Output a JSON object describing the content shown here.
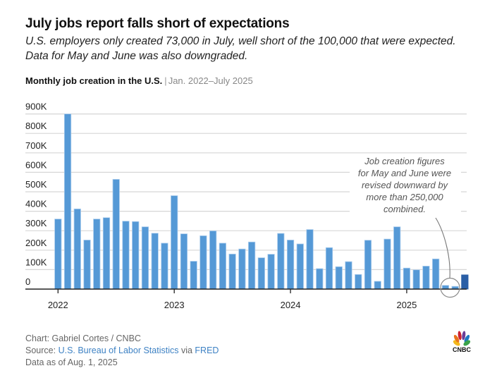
{
  "header": {
    "title": "July jobs report falls short of expectations",
    "subtitle": "U.S. employers only created 73,000 in July, well short of the 100,000 that were expected. Data for May and June was also downgraded.",
    "chart_label_bold": "Monthly job creation in the U.S.",
    "chart_label_separator": "|",
    "chart_label_range": "Jan. 2022–July 2025"
  },
  "colors": {
    "bar": "#5599d6",
    "bar_highlight": "#2a5fa6",
    "link": "#3e82c4"
  },
  "chart_data": {
    "type": "bar",
    "title": "Monthly job creation in the U.S.",
    "subtitle": "Jan. 2022–July 2025",
    "xlabel": "",
    "ylabel": "",
    "ylim": [
      0,
      900000
    ],
    "yticks": [
      0,
      100000,
      200000,
      300000,
      400000,
      500000,
      600000,
      700000,
      800000,
      900000
    ],
    "ytick_labels": [
      "0",
      "100K",
      "200K",
      "300K",
      "400K",
      "500K",
      "600K",
      "700K",
      "800K",
      "900K"
    ],
    "xtick_labels": [
      {
        "label": "2022",
        "index": 0
      },
      {
        "label": "2023",
        "index": 12
      },
      {
        "label": "2024",
        "index": 24
      },
      {
        "label": "2025",
        "index": 36
      }
    ],
    "grid": true,
    "categories": [
      "Jan 2022",
      "Feb 2022",
      "Mar 2022",
      "Apr 2022",
      "May 2022",
      "Jun 2022",
      "Jul 2022",
      "Aug 2022",
      "Sep 2022",
      "Oct 2022",
      "Nov 2022",
      "Dec 2022",
      "Jan 2023",
      "Feb 2023",
      "Mar 2023",
      "Apr 2023",
      "May 2023",
      "Jun 2023",
      "Jul 2023",
      "Aug 2023",
      "Sep 2023",
      "Oct 2023",
      "Nov 2023",
      "Dec 2023",
      "Jan 2024",
      "Feb 2024",
      "Mar 2024",
      "Apr 2024",
      "May 2024",
      "Jun 2024",
      "Jul 2024",
      "Aug 2024",
      "Sep 2024",
      "Oct 2024",
      "Nov 2024",
      "Dec 2024",
      "Jan 2025",
      "Feb 2025",
      "Mar 2025",
      "Apr 2025",
      "May 2025",
      "Jun 2025",
      "Jul 2025"
    ],
    "values": [
      360000,
      900000,
      412000,
      252000,
      360000,
      367000,
      564000,
      349000,
      347000,
      320000,
      287000,
      236000,
      480000,
      284000,
      143000,
      274000,
      299000,
      236000,
      180000,
      206000,
      242000,
      161000,
      179000,
      286000,
      252000,
      232000,
      306000,
      105000,
      213000,
      115000,
      141000,
      75000,
      251000,
      40000,
      257000,
      320000,
      108000,
      99000,
      118000,
      155000,
      19000,
      14000,
      73000
    ],
    "highlight_index": 42,
    "circled_indices": [
      40,
      41
    ],
    "annotation": {
      "lines": [
        "Job creation figures",
        "for May and June were",
        "revised downward by",
        "more than 250,000",
        "combined."
      ]
    }
  },
  "footer": {
    "chart_credit": "Chart: Gabriel Cortes / CNBC",
    "source_prefix": "Source: ",
    "source_link": "U.S. Bureau of Labor Statistics",
    "source_via": " via ",
    "source_link2": "FRED",
    "data_as_of": "Data as of Aug. 1, 2025",
    "logo_text": "CNBC"
  }
}
